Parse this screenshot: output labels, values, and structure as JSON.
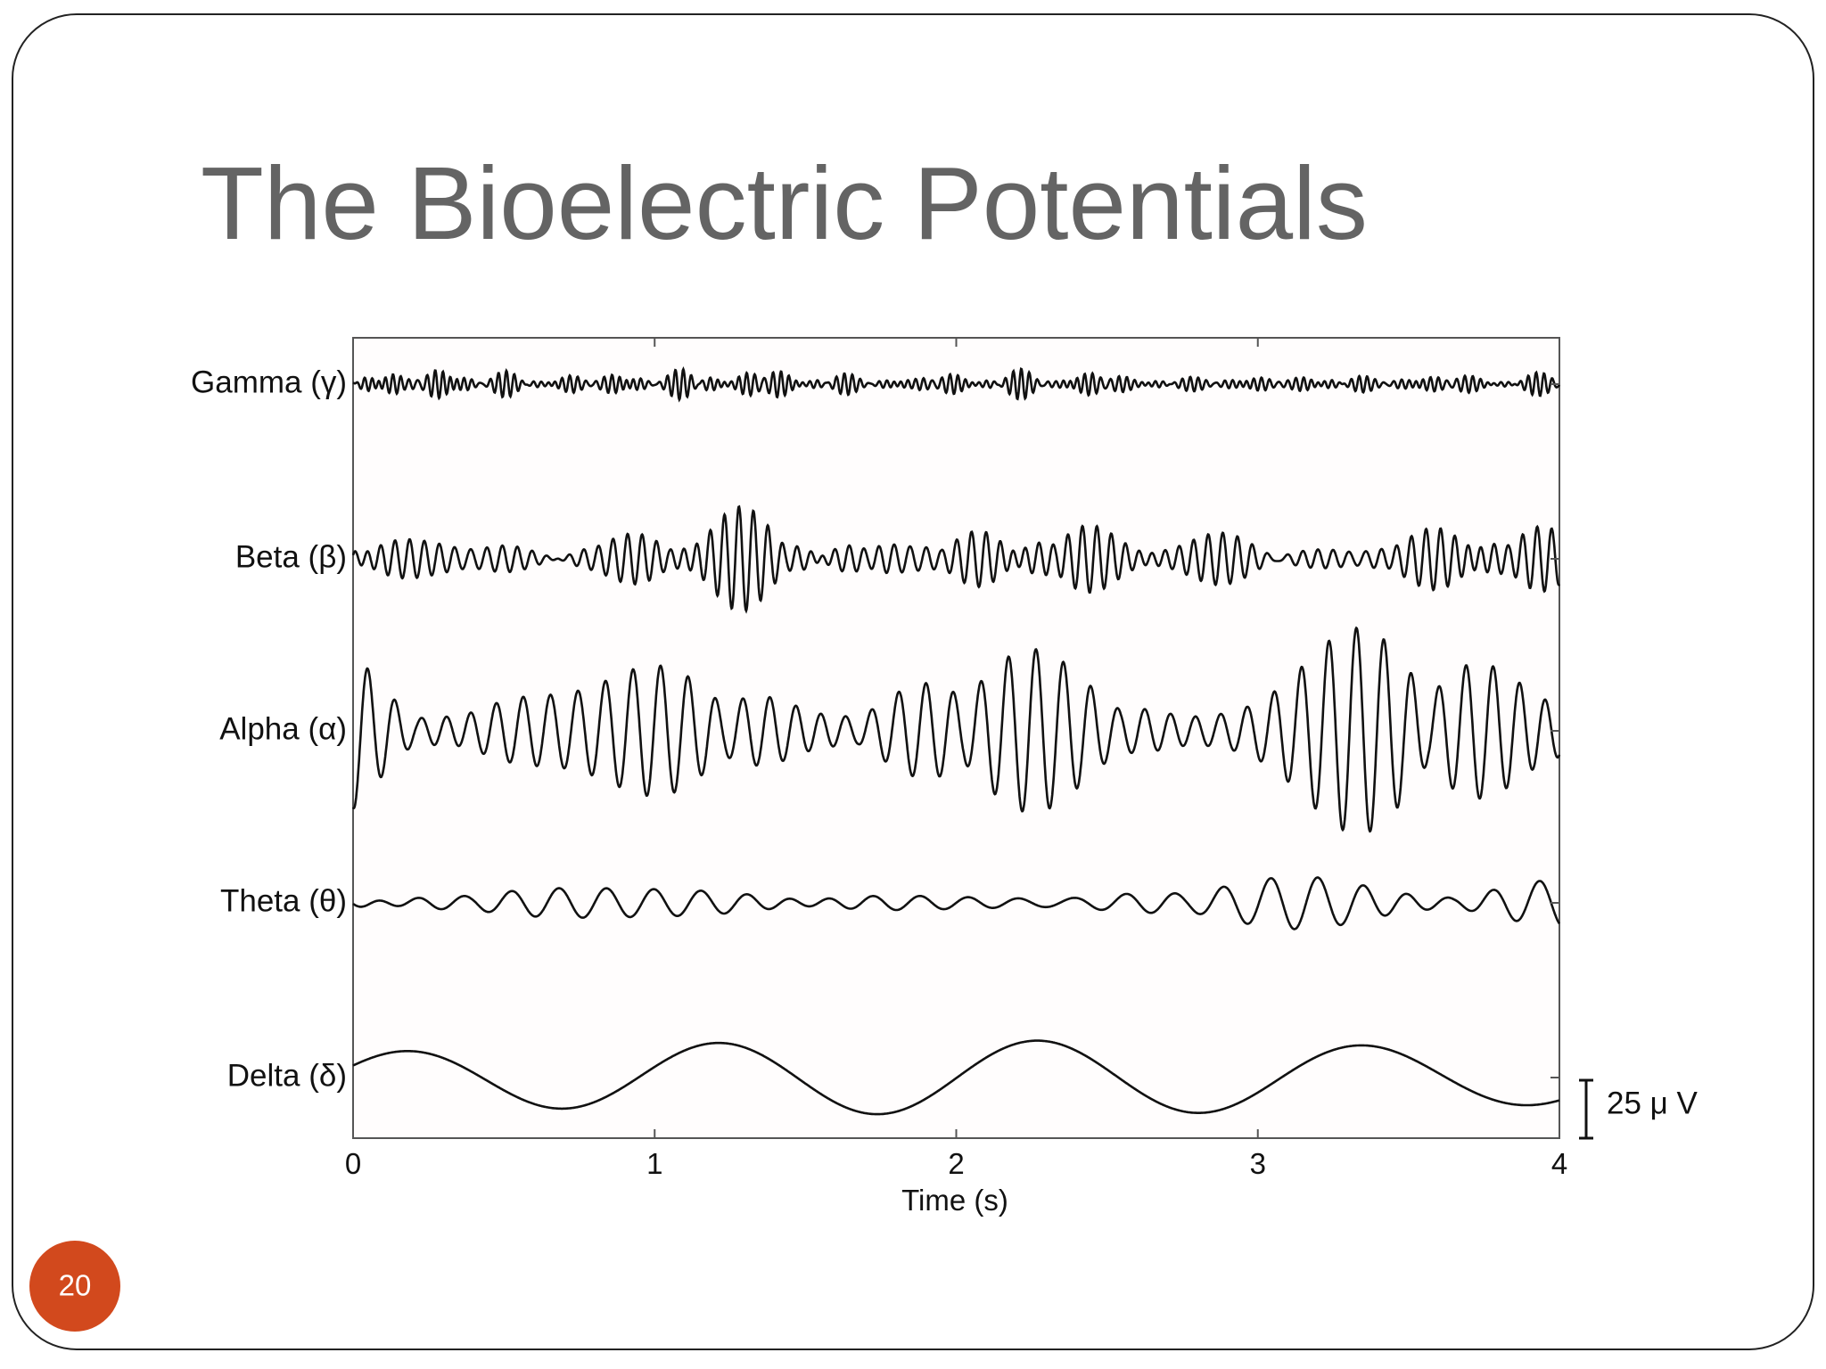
{
  "title": "The Bioelectric Potentials",
  "slide_number": "20",
  "figure": {
    "channels": [
      "Gamma (γ)",
      "Beta (β)",
      "Alpha (α)",
      "Theta (θ)",
      "Delta (δ)"
    ],
    "xlim": [
      0,
      4
    ],
    "xticks": [
      0,
      1,
      2,
      3,
      4
    ],
    "xlabel": "Time (s)",
    "scale_bar": "25 μ V"
  }
}
